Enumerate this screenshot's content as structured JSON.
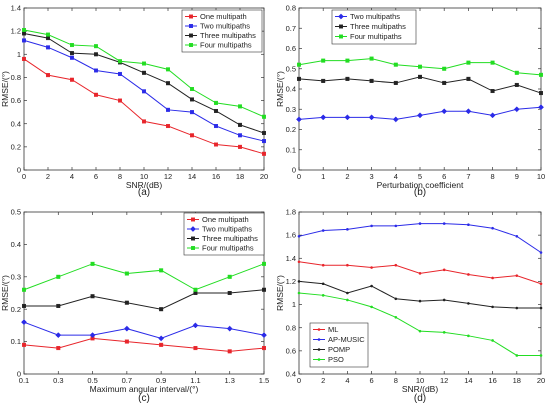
{
  "chart_data": [
    {
      "type": "line",
      "panel_label": "(a)",
      "xlabel": "SNR/(dB)",
      "ylabel": "RMSE/(°)",
      "x": [
        0,
        2,
        4,
        6,
        8,
        10,
        12,
        14,
        16,
        18,
        20
      ],
      "xticks": [
        "0",
        "2",
        "4",
        "6",
        "8",
        "10",
        "12",
        "14",
        "16",
        "18",
        "20"
      ],
      "xlim": [
        0,
        20
      ],
      "ylim": [
        0,
        1.4
      ],
      "yticks": [
        "0",
        "0.2",
        "0.4",
        "0.6",
        "0.8",
        "1",
        "1.2",
        "1.4"
      ],
      "legend_position": "top-right",
      "series": [
        {
          "name": "One multipath",
          "color": "#e8252b",
          "marker": "square",
          "values": [
            0.96,
            0.82,
            0.78,
            0.65,
            0.6,
            0.42,
            0.38,
            0.3,
            0.22,
            0.2,
            0.14
          ]
        },
        {
          "name": "Two multipaths",
          "color": "#2b2be8",
          "marker": "square",
          "values": [
            1.12,
            1.06,
            0.97,
            0.86,
            0.83,
            0.68,
            0.52,
            0.5,
            0.38,
            0.3,
            0.25
          ]
        },
        {
          "name": "Three multipaths",
          "color": "#222222",
          "marker": "square",
          "values": [
            1.18,
            1.14,
            1.01,
            1.0,
            0.93,
            0.84,
            0.75,
            0.61,
            0.51,
            0.39,
            0.32
          ]
        },
        {
          "name": "Four multipaths",
          "color": "#22dd22",
          "marker": "square",
          "values": [
            1.21,
            1.17,
            1.08,
            1.07,
            0.94,
            0.92,
            0.87,
            0.7,
            0.58,
            0.55,
            0.46
          ]
        }
      ]
    },
    {
      "type": "line",
      "panel_label": "(b)",
      "xlabel": "Perturbation coefficient",
      "ylabel": "RMSE/(°)",
      "x": [
        0,
        1,
        2,
        3,
        4,
        5,
        6,
        7,
        8,
        9,
        10
      ],
      "xticks": [
        "0",
        "1",
        "2",
        "3",
        "4",
        "5",
        "6",
        "7",
        "8",
        "9",
        "10"
      ],
      "xlim": [
        0,
        10
      ],
      "ylim": [
        0,
        0.8
      ],
      "yticks": [
        "0",
        "0.1",
        "0.2",
        "0.3",
        "0.4",
        "0.5",
        "0.6",
        "0.7",
        "0.8"
      ],
      "legend_position": "top-right",
      "series": [
        {
          "name": "Two multipaths",
          "color": "#2b2be8",
          "marker": "diamond",
          "values": [
            0.25,
            0.26,
            0.26,
            0.26,
            0.25,
            0.27,
            0.29,
            0.29,
            0.27,
            0.3,
            0.31
          ]
        },
        {
          "name": "Three multipaths",
          "color": "#222222",
          "marker": "square",
          "values": [
            0.45,
            0.44,
            0.45,
            0.44,
            0.43,
            0.46,
            0.43,
            0.45,
            0.39,
            0.42,
            0.38
          ]
        },
        {
          "name": "Four multipaths",
          "color": "#22dd22",
          "marker": "square",
          "values": [
            0.52,
            0.54,
            0.54,
            0.55,
            0.52,
            0.51,
            0.5,
            0.53,
            0.53,
            0.48,
            0.47
          ]
        }
      ]
    },
    {
      "type": "line",
      "panel_label": "(c)",
      "xlabel": "Maximum angular interval/(°)",
      "ylabel": "RMSE/(°)",
      "x": [
        0.1,
        0.3,
        0.5,
        0.7,
        0.9,
        1.1,
        1.3,
        1.5
      ],
      "xticks": [
        "0.1",
        "0.3",
        "0.5",
        "0.7",
        "0.9",
        "1.1",
        "1.3",
        "1.5"
      ],
      "xlim": [
        0.1,
        1.5
      ],
      "ylim": [
        0,
        0.5
      ],
      "yticks": [
        "0",
        "0.1",
        "0.2",
        "0.3",
        "0.4",
        "0.5"
      ],
      "legend_position": "top-right",
      "series": [
        {
          "name": "One multipath",
          "color": "#e8252b",
          "marker": "square",
          "values": [
            0.09,
            0.08,
            0.11,
            0.1,
            0.09,
            0.08,
            0.07,
            0.08
          ]
        },
        {
          "name": "Two multipaths",
          "color": "#2b2be8",
          "marker": "diamond",
          "values": [
            0.16,
            0.12,
            0.12,
            0.14,
            0.11,
            0.15,
            0.14,
            0.12
          ]
        },
        {
          "name": "Three multipaths",
          "color": "#222222",
          "marker": "square",
          "values": [
            0.21,
            0.21,
            0.24,
            0.22,
            0.2,
            0.25,
            0.25,
            0.26
          ]
        },
        {
          "name": "Four multipaths",
          "color": "#22dd22",
          "marker": "square",
          "values": [
            0.26,
            0.3,
            0.34,
            0.31,
            0.32,
            0.26,
            0.3,
            0.34
          ]
        }
      ]
    },
    {
      "type": "line",
      "panel_label": "(d)",
      "xlabel": "SNR/(dB)",
      "ylabel": "RMSE/(°)",
      "x": [
        0,
        2,
        4,
        6,
        8,
        10,
        12,
        14,
        16,
        18,
        20
      ],
      "xticks": [
        "0",
        "2",
        "4",
        "6",
        "8",
        "10",
        "12",
        "14",
        "16",
        "18",
        "20"
      ],
      "xlim": [
        0,
        20
      ],
      "ylim": [
        0.4,
        1.8
      ],
      "yticks": [
        "0.4",
        "0.6",
        "0.8",
        "1",
        "1.2",
        "1.4",
        "1.6",
        "1.8"
      ],
      "legend_position": "bottom-left",
      "series": [
        {
          "name": "ML",
          "color": "#e8252b",
          "marker": "dot",
          "values": [
            1.37,
            1.34,
            1.34,
            1.32,
            1.34,
            1.27,
            1.3,
            1.26,
            1.23,
            1.25,
            1.18
          ]
        },
        {
          "name": "AP-MUSIC",
          "color": "#2b2be8",
          "marker": "dot",
          "values": [
            1.59,
            1.64,
            1.65,
            1.68,
            1.68,
            1.7,
            1.7,
            1.69,
            1.66,
            1.59,
            1.45
          ]
        },
        {
          "name": "POMP",
          "color": "#222222",
          "marker": "dot",
          "values": [
            1.2,
            1.18,
            1.1,
            1.16,
            1.05,
            1.03,
            1.04,
            1.01,
            0.98,
            0.97,
            0.97
          ]
        },
        {
          "name": "PSO",
          "color": "#22dd22",
          "marker": "dot",
          "values": [
            1.1,
            1.08,
            1.04,
            0.98,
            0.89,
            0.77,
            0.76,
            0.73,
            0.69,
            0.56,
            0.56
          ]
        }
      ]
    }
  ]
}
